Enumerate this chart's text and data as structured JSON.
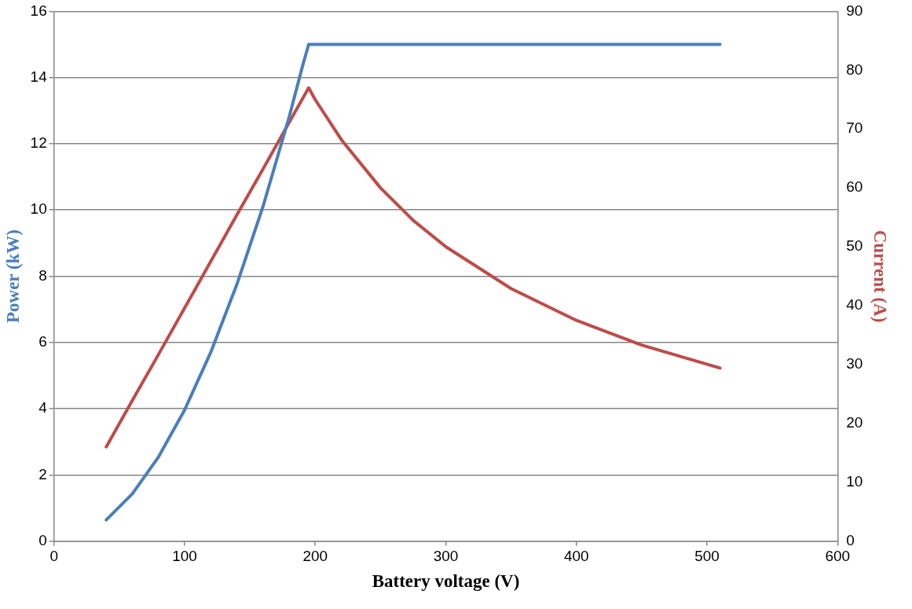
{
  "chart_data": {
    "type": "line",
    "xlabel": "Battery voltage (V)",
    "ylabel": "Power (kW)",
    "y2label": "Current (A)",
    "xlim": [
      0,
      600
    ],
    "xticks": [
      0,
      100,
      200,
      300,
      400,
      500,
      600
    ],
    "ylim": [
      0,
      16
    ],
    "yticks": [
      0,
      2,
      4,
      6,
      8,
      10,
      12,
      14,
      16
    ],
    "y2lim": [
      0,
      90
    ],
    "y2ticks": [
      0,
      10,
      20,
      30,
      40,
      50,
      60,
      70,
      80,
      90
    ],
    "grid": "y",
    "legend": false,
    "marker": "none",
    "line_style": "solid",
    "series": [
      {
        "color": "#4a7ebb",
        "x": [
          40,
          60,
          80,
          100,
          120,
          140,
          160,
          180,
          190,
          195,
          200,
          250,
          300,
          400,
          510
        ],
        "values": [
          0.64,
          1.43,
          2.54,
          3.96,
          5.7,
          7.75,
          10.1,
          12.8,
          14.3,
          15,
          15,
          15,
          15,
          15,
          15
        ]
      },
      {
        "color": "#be4b48",
        "axis": "y2",
        "x": [
          40,
          60,
          80,
          100,
          120,
          140,
          160,
          180,
          195,
          200,
          220,
          250,
          275,
          300,
          350,
          400,
          450,
          510
        ],
        "values": [
          16,
          23.9,
          31.7,
          39.6,
          47.5,
          55.4,
          63.2,
          71.1,
          77,
          75,
          68.2,
          60,
          54.5,
          50,
          42.9,
          37.5,
          33.3,
          29.4
        ]
      }
    ]
  }
}
